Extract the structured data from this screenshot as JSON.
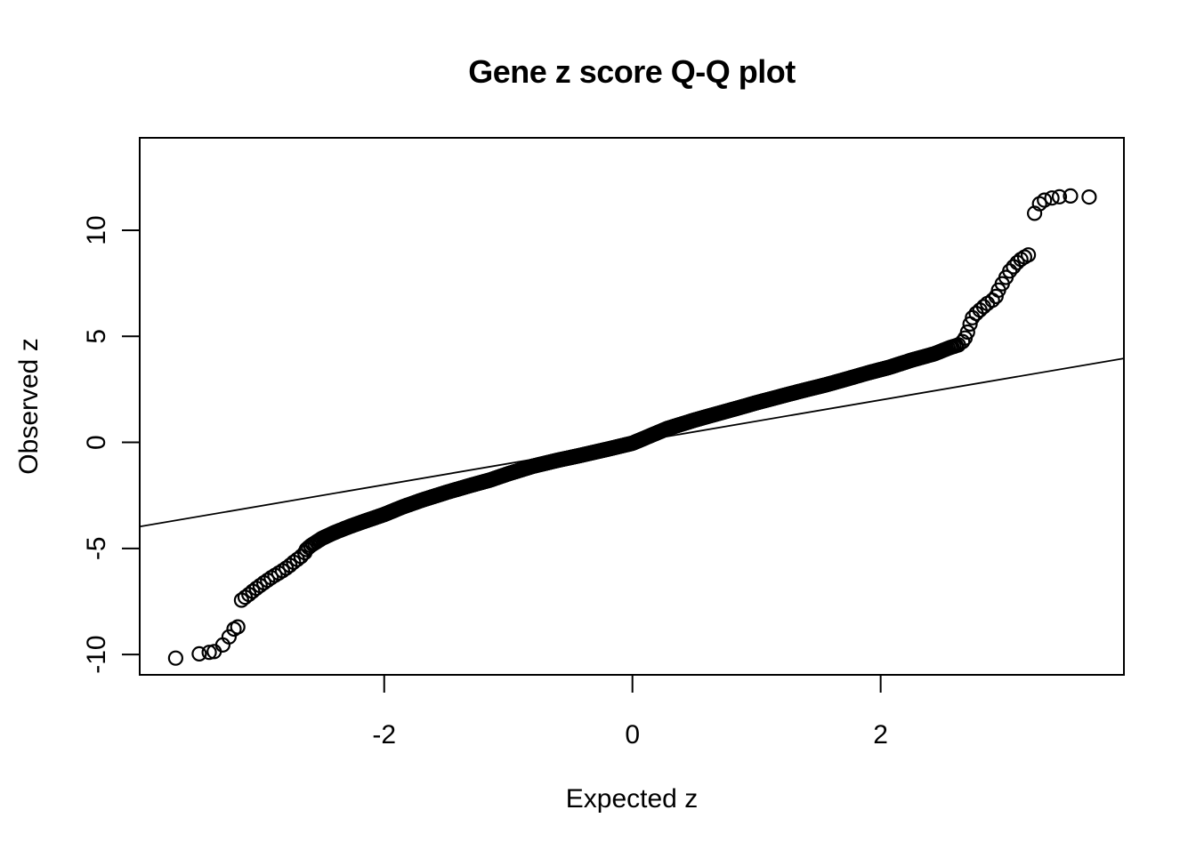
{
  "page": {
    "background": "#ffffff"
  },
  "chart_data": {
    "type": "scatter",
    "subtype": "qq-normal-plot",
    "title": "Gene z score Q-Q plot",
    "xlabel": "Expected z",
    "ylabel": "Observed z",
    "x_ticks": [
      -2,
      0,
      2
    ],
    "x_tick_labels": [
      "-2",
      "0",
      "2"
    ],
    "y_ticks": [
      -10,
      -5,
      0,
      5,
      10
    ],
    "y_tick_labels": [
      "-10",
      "-5",
      "0",
      "5",
      "10"
    ],
    "xlim": [
      -3.97,
      3.96
    ],
    "ylim": [
      -10.96,
      14.36
    ],
    "grid": false,
    "legend": "none",
    "point_color": "#000000",
    "axis_color": "#000000",
    "reference_line": {
      "slope": 1,
      "intercept": 0,
      "color": "#000000"
    },
    "n_points_estimate": 4300,
    "band_range_expected": [
      -2.63,
      2.63
    ],
    "qq_band_anchors": [
      [
        -2.7,
        -5.45
      ],
      [
        -2.6,
        -4.9
      ],
      [
        -2.5,
        -4.52
      ],
      [
        -2.4,
        -4.25
      ],
      [
        -2.28,
        -3.97
      ],
      [
        -2.15,
        -3.7
      ],
      [
        -2.0,
        -3.4
      ],
      [
        -1.85,
        -3.04
      ],
      [
        -1.7,
        -2.73
      ],
      [
        -1.5,
        -2.36
      ],
      [
        -1.3,
        -2.02
      ],
      [
        -1.15,
        -1.78
      ],
      [
        -1.0,
        -1.48
      ],
      [
        -0.8,
        -1.12
      ],
      [
        -0.6,
        -0.84
      ],
      [
        -0.44,
        -0.64
      ],
      [
        -0.2,
        -0.32
      ],
      [
        0.0,
        -0.04
      ],
      [
        0.28,
        0.65
      ],
      [
        0.5,
        1.05
      ],
      [
        0.64,
        1.28
      ],
      [
        0.85,
        1.62
      ],
      [
        1.0,
        1.87
      ],
      [
        1.2,
        2.18
      ],
      [
        1.35,
        2.41
      ],
      [
        1.55,
        2.7
      ],
      [
        1.71,
        2.96
      ],
      [
        1.9,
        3.28
      ],
      [
        2.07,
        3.54
      ],
      [
        2.25,
        3.88
      ],
      [
        2.43,
        4.17
      ],
      [
        2.55,
        4.45
      ],
      [
        2.63,
        4.6
      ],
      [
        2.7,
        4.95
      ]
    ],
    "tail_points_low": [
      [
        -3.68,
        -10.17
      ],
      [
        -3.49,
        -9.97
      ],
      [
        -3.41,
        -9.9
      ],
      [
        -3.37,
        -9.86
      ],
      [
        -3.3,
        -9.55
      ],
      [
        -3.25,
        -9.17
      ],
      [
        -3.21,
        -8.8
      ],
      [
        -3.18,
        -8.7
      ],
      [
        -3.15,
        -7.44
      ],
      [
        -3.12,
        -7.3
      ],
      [
        -3.09,
        -7.17
      ],
      [
        -3.06,
        -7.02
      ],
      [
        -3.03,
        -6.88
      ],
      [
        -3.0,
        -6.75
      ],
      [
        -2.97,
        -6.62
      ],
      [
        -2.94,
        -6.5
      ],
      [
        -2.91,
        -6.38
      ],
      [
        -2.88,
        -6.27
      ],
      [
        -2.85,
        -6.16
      ],
      [
        -2.82,
        -6.05
      ],
      [
        -2.79,
        -5.93
      ],
      [
        -2.76,
        -5.8
      ],
      [
        -2.73,
        -5.65
      ],
      [
        -2.7,
        -5.52
      ],
      [
        -2.67,
        -5.38
      ],
      [
        -2.64,
        -5.2
      ]
    ],
    "tail_points_high": [
      [
        2.66,
        4.75
      ],
      [
        2.68,
        4.92
      ],
      [
        2.7,
        5.2
      ],
      [
        2.72,
        5.58
      ],
      [
        2.74,
        5.88
      ],
      [
        2.77,
        6.08
      ],
      [
        2.8,
        6.24
      ],
      [
        2.83,
        6.4
      ],
      [
        2.86,
        6.55
      ],
      [
        2.9,
        6.7
      ],
      [
        2.93,
        6.88
      ],
      [
        2.95,
        7.18
      ],
      [
        2.98,
        7.48
      ],
      [
        3.01,
        7.78
      ],
      [
        3.04,
        8.08
      ],
      [
        3.07,
        8.28
      ],
      [
        3.1,
        8.48
      ],
      [
        3.13,
        8.63
      ],
      [
        3.16,
        8.74
      ],
      [
        3.19,
        8.84
      ],
      [
        3.24,
        10.8
      ],
      [
        3.28,
        11.25
      ],
      [
        3.32,
        11.42
      ],
      [
        3.38,
        11.52
      ],
      [
        3.44,
        11.58
      ],
      [
        3.53,
        11.62
      ],
      [
        3.68,
        11.57
      ]
    ]
  }
}
